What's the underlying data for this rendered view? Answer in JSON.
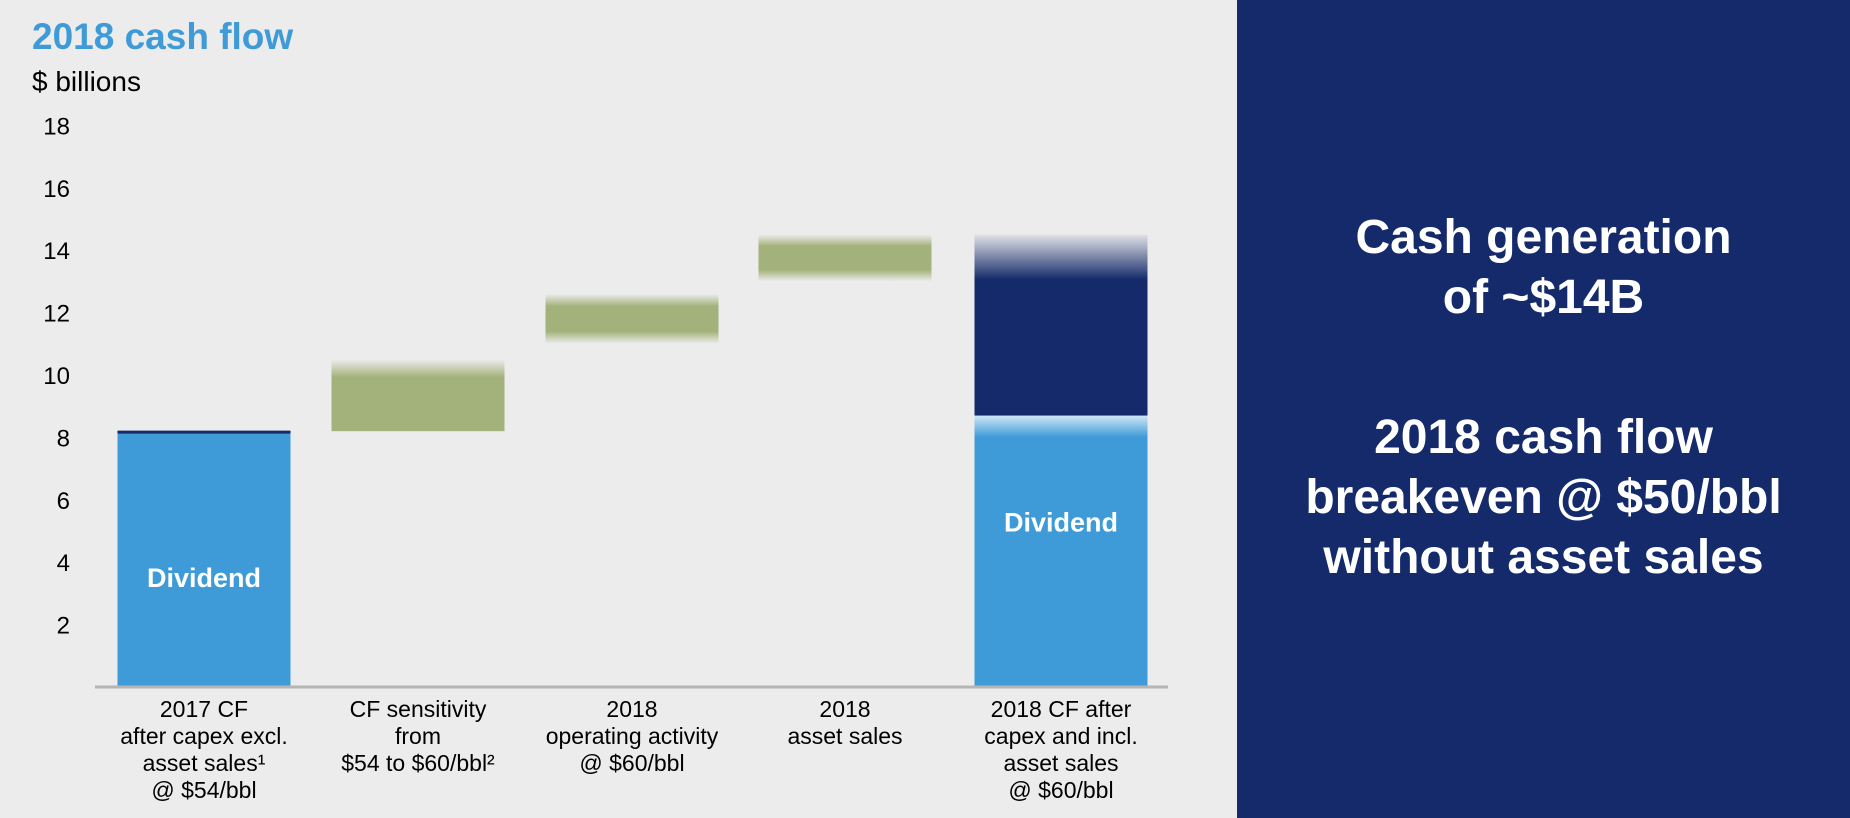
{
  "chart_data": {
    "type": "bar",
    "subtype": "waterfall",
    "title": "2018 cash flow",
    "ylabel": "$ billions",
    "ylim": [
      0,
      18
    ],
    "yticks": [
      2,
      4,
      6,
      8,
      10,
      12,
      14,
      16,
      18
    ],
    "grid": false,
    "categories": [
      [
        "2017 CF",
        "after capex excl.",
        "asset sales¹",
        "@ $54/bbl"
      ],
      [
        "CF sensitivity",
        "from",
        "$54 to $60/bbl²"
      ],
      [
        "2018",
        "operating activity",
        "@ $60/bbl"
      ],
      [
        "2018",
        "asset sales"
      ],
      [
        "2018 CF after",
        "capex and incl.",
        "asset sales",
        "@ $60/bbl"
      ]
    ],
    "bars": [
      {
        "kind": "total",
        "start": 0,
        "end": 8.2,
        "label": "Dividend",
        "color": "#3e9bd8"
      },
      {
        "kind": "step",
        "start": 8.2,
        "end": 10.5,
        "color": "#a3b17a"
      },
      {
        "kind": "step",
        "start": 11.0,
        "end": 12.6,
        "color": "#a3b17a"
      },
      {
        "kind": "step",
        "start": 13.0,
        "end": 14.5,
        "color": "#a3b17a"
      },
      {
        "kind": "stacked",
        "segments": [
          {
            "start": 0,
            "end": 8.7,
            "label": "Dividend",
            "color": "#3e9bd8"
          },
          {
            "start": 8.7,
            "end": 14.5,
            "label": "",
            "color": "#142a6a"
          }
        ]
      }
    ]
  },
  "callout": {
    "line1": "Cash generation",
    "line2": "of ~$14B",
    "line3": "2018 cash flow",
    "line4": "breakeven @ $50/bbl",
    "line5": "without asset sales"
  }
}
